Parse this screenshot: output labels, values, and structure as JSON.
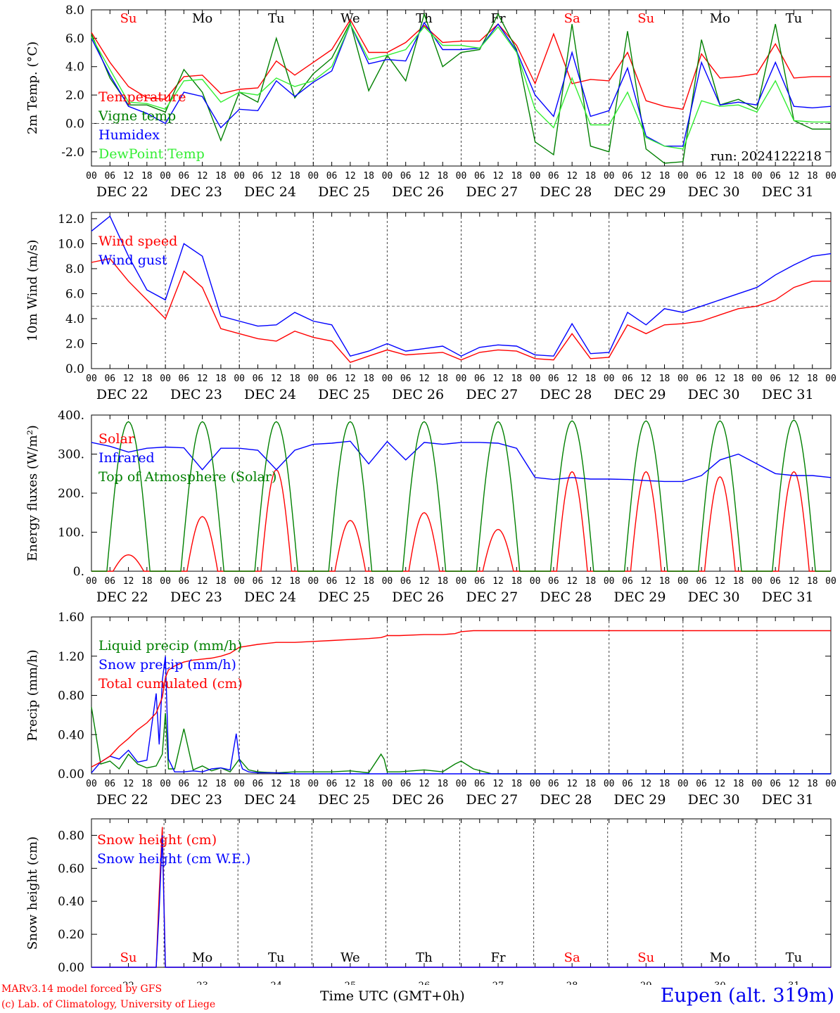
{
  "colors": {
    "red": "#ff0000",
    "green": "#008000",
    "blue": "#0000ff",
    "lightgreen": "#33ee33",
    "text": "#000000"
  },
  "x_ticks": [
    "00",
    "06",
    "12",
    "18",
    "00",
    "06",
    "12",
    "18",
    "00",
    "06",
    "12",
    "18",
    "00",
    "06",
    "12",
    "18",
    "00",
    "06",
    "12",
    "18",
    "00",
    "06",
    "12",
    "18",
    "00",
    "06",
    "12",
    "18",
    "00",
    "06",
    "12",
    "18",
    "00",
    "06",
    "12",
    "18",
    "00",
    "06",
    "12",
    "18",
    "00"
  ],
  "date_labels": [
    "DEC 22",
    "DEC 23",
    "DEC 24",
    "DEC 25",
    "DEC 26",
    "DEC 27",
    "DEC 28",
    "DEC 29",
    "DEC 30",
    "DEC 31"
  ],
  "weekdays": [
    {
      "label": "Su",
      "weekend": true
    },
    {
      "label": "Mo",
      "weekend": false
    },
    {
      "label": "Tu",
      "weekend": false
    },
    {
      "label": "We",
      "weekend": false
    },
    {
      "label": "Th",
      "weekend": false
    },
    {
      "label": "Fr",
      "weekend": false
    },
    {
      "label": "Sa",
      "weekend": true
    },
    {
      "label": "Su",
      "weekend": true
    },
    {
      "label": "Mo",
      "weekend": false
    },
    {
      "label": "Tu",
      "weekend": false
    }
  ],
  "day_numbers": [
    "22",
    "23",
    "24",
    "25",
    "26",
    "27",
    "28",
    "29",
    "30",
    "31"
  ],
  "run_label": "run: 2024122218",
  "footer": {
    "model": "MARv3.14 model forced by GFS",
    "credit": "(c) Lab. of Climatology, University of Liege",
    "time_axis": "Time UTC (GMT+0h)",
    "station": "Eupen (alt. 319m)"
  },
  "chart_data": [
    {
      "type": "line",
      "ylabel": "2m Temp. (°C)",
      "yticks": [
        "8.0",
        "6.0",
        "4.0",
        "2.0",
        "0.0",
        "-2.0"
      ],
      "ylim": [
        -3.0,
        8.0
      ],
      "x_unit": "hours since 2024-12-22 00 UTC",
      "xlim": [
        0,
        240
      ],
      "reference_line": 0.0,
      "series": [
        {
          "name": "Temperature",
          "color": "red",
          "x": [
            0,
            6,
            12,
            18,
            24,
            30,
            36,
            42,
            48,
            54,
            60,
            66,
            72,
            78,
            84,
            90,
            96,
            102,
            108,
            114,
            120,
            126,
            132,
            138,
            144,
            150,
            156,
            162,
            168,
            174,
            180,
            186,
            192,
            198,
            204,
            210,
            216,
            222,
            228,
            234,
            240
          ],
          "y": [
            6.4,
            4.3,
            2.6,
            1.8,
            1.7,
            3.3,
            3.4,
            2.1,
            2.4,
            2.5,
            4.4,
            3.4,
            4.3,
            5.2,
            7.3,
            5.0,
            5.0,
            5.7,
            6.9,
            5.7,
            5.8,
            5.8,
            7.0,
            5.5,
            2.8,
            6.3,
            2.8,
            3.1,
            3.0,
            5.0,
            1.6,
            1.2,
            1.0,
            4.9,
            3.2,
            3.3,
            3.5,
            5.6,
            3.2,
            3.3,
            3.3
          ]
        },
        {
          "name": "Vigne temp",
          "color": "green",
          "x": [
            0,
            6,
            12,
            18,
            24,
            30,
            36,
            42,
            48,
            54,
            60,
            66,
            72,
            78,
            84,
            90,
            96,
            102,
            108,
            114,
            120,
            126,
            132,
            138,
            144,
            150,
            156,
            162,
            168,
            174,
            180,
            186,
            192,
            198,
            204,
            210,
            216,
            222,
            228,
            234,
            240
          ],
          "y": [
            6.3,
            3.2,
            1.3,
            1.3,
            0.8,
            3.8,
            2.2,
            -1.2,
            2.2,
            1.5,
            6.0,
            1.8,
            3.5,
            4.6,
            7.1,
            2.3,
            4.8,
            3.0,
            7.7,
            4.0,
            5.0,
            5.2,
            7.7,
            5.2,
            -1.3,
            -2.2,
            7.0,
            -1.6,
            -2.0,
            6.5,
            -1.8,
            -2.8,
            -2.7,
            5.9,
            1.3,
            1.7,
            1.0,
            7.0,
            0.2,
            -0.4,
            -0.4
          ]
        },
        {
          "name": "Humidex",
          "color": "blue",
          "x": [
            0,
            6,
            12,
            18,
            24,
            30,
            36,
            42,
            48,
            54,
            60,
            66,
            72,
            78,
            84,
            90,
            96,
            102,
            108,
            114,
            120,
            126,
            132,
            138,
            144,
            150,
            156,
            162,
            168,
            174,
            180,
            186,
            192,
            198,
            204,
            210,
            216,
            222,
            228,
            234,
            240
          ],
          "y": [
            6.0,
            3.4,
            1.2,
            0.7,
            0.0,
            2.2,
            1.9,
            -0.3,
            1.0,
            0.9,
            3.0,
            1.9,
            2.9,
            3.7,
            7.0,
            4.2,
            4.5,
            4.4,
            7.1,
            5.2,
            5.2,
            5.3,
            7.0,
            5.1,
            2.0,
            0.5,
            5.0,
            0.5,
            0.9,
            3.9,
            -0.9,
            -1.6,
            -1.6,
            4.3,
            1.3,
            1.5,
            1.3,
            4.3,
            1.2,
            1.1,
            1.2
          ]
        },
        {
          "name": "DewPoint Temp",
          "color": "lightgreen",
          "x": [
            0,
            6,
            12,
            18,
            24,
            30,
            36,
            42,
            48,
            54,
            60,
            66,
            72,
            78,
            84,
            90,
            96,
            102,
            108,
            114,
            120,
            126,
            132,
            138,
            144,
            150,
            156,
            162,
            168,
            174,
            180,
            186,
            192,
            198,
            204,
            210,
            216,
            222,
            228,
            234,
            240
          ],
          "y": [
            6.1,
            3.8,
            1.5,
            1.4,
            1.0,
            3.0,
            3.1,
            1.5,
            2.2,
            2.0,
            3.2,
            2.6,
            3.0,
            4.0,
            7.0,
            4.5,
            4.8,
            5.2,
            6.8,
            5.5,
            5.5,
            5.3,
            6.8,
            5.0,
            1.0,
            -0.3,
            3.2,
            -0.1,
            -0.1,
            2.2,
            -1.0,
            -1.6,
            -1.8,
            1.6,
            1.2,
            1.3,
            0.8,
            3.0,
            0.2,
            0.1,
            0.1
          ]
        }
      ]
    },
    {
      "type": "line",
      "ylabel": "10m Wind (m/s)",
      "yticks": [
        "12.0",
        "10.0",
        "8.0",
        "6.0",
        "4.0",
        "2.0",
        "0.0"
      ],
      "ylim": [
        0,
        12.5
      ],
      "x_unit": "hours since 2024-12-22 00 UTC",
      "xlim": [
        0,
        240
      ],
      "reference_line": 5.0,
      "series": [
        {
          "name": "Wind speed",
          "color": "red",
          "x": [
            0,
            6,
            12,
            18,
            24,
            30,
            36,
            42,
            48,
            54,
            60,
            66,
            72,
            78,
            84,
            90,
            96,
            102,
            108,
            114,
            120,
            126,
            132,
            138,
            144,
            150,
            156,
            162,
            168,
            174,
            180,
            186,
            192,
            198,
            204,
            210,
            216,
            222,
            228,
            234,
            240
          ],
          "y": [
            8.5,
            8.8,
            7.0,
            5.5,
            4.0,
            7.8,
            6.5,
            3.2,
            2.8,
            2.4,
            2.2,
            3.0,
            2.5,
            2.2,
            0.5,
            1.0,
            1.5,
            1.1,
            1.2,
            1.3,
            0.7,
            1.3,
            1.5,
            1.4,
            0.8,
            0.7,
            2.8,
            0.8,
            0.9,
            3.5,
            2.8,
            3.5,
            3.6,
            3.8,
            4.3,
            4.8,
            5.0,
            5.5,
            6.5,
            7.0,
            7.0
          ]
        },
        {
          "name": "Wind gust",
          "color": "blue",
          "x": [
            0,
            6,
            12,
            18,
            24,
            30,
            36,
            42,
            48,
            54,
            60,
            66,
            72,
            78,
            84,
            90,
            96,
            102,
            108,
            114,
            120,
            126,
            132,
            138,
            144,
            150,
            156,
            162,
            168,
            174,
            180,
            186,
            192,
            198,
            204,
            210,
            216,
            222,
            228,
            234,
            240
          ],
          "y": [
            11.0,
            12.2,
            9.0,
            6.3,
            5.5,
            10.0,
            9.0,
            4.2,
            3.8,
            3.4,
            3.5,
            4.5,
            3.8,
            3.5,
            1.0,
            1.4,
            2.0,
            1.4,
            1.6,
            1.8,
            1.0,
            1.7,
            1.9,
            1.8,
            1.1,
            1.0,
            3.6,
            1.2,
            1.3,
            4.5,
            3.5,
            4.8,
            4.5,
            5.0,
            5.5,
            6.0,
            6.5,
            7.5,
            8.3,
            9.0,
            9.2
          ]
        }
      ]
    },
    {
      "type": "line",
      "ylabel": "Energy fluxes (W/m²)",
      "yticks": [
        "400.",
        "300.",
        "200.",
        "100.",
        "0."
      ],
      "ylim": [
        0,
        400
      ],
      "x_unit": "hours since 2024-12-22 00 UTC",
      "xlim": [
        0,
        240
      ],
      "series": [
        {
          "name": "Solar",
          "color": "red",
          "daily_peak_hour": 12,
          "daily_peaks": [
            42,
            140,
            260,
            130,
            150,
            107,
            255,
            255,
            242,
            255
          ],
          "half_width_hours": 5
        },
        {
          "name": "Infrared",
          "color": "blue",
          "x": [
            0,
            6,
            12,
            18,
            24,
            30,
            36,
            42,
            48,
            54,
            60,
            66,
            72,
            78,
            84,
            90,
            96,
            102,
            108,
            114,
            120,
            126,
            132,
            138,
            144,
            150,
            156,
            162,
            168,
            174,
            180,
            186,
            192,
            198,
            204,
            210,
            216,
            222,
            228,
            234,
            240
          ],
          "y": [
            330,
            320,
            305,
            315,
            318,
            316,
            260,
            315,
            315,
            310,
            260,
            310,
            325,
            328,
            333,
            275,
            332,
            285,
            330,
            325,
            330,
            330,
            328,
            315,
            240,
            235,
            240,
            236,
            236,
            235,
            232,
            230,
            230,
            245,
            285,
            300,
            275,
            250,
            245,
            245,
            240
          ]
        },
        {
          "name": "Top of Atmosphere (Solar)",
          "color": "green",
          "daily_peak_hour": 12,
          "daily_peaks": [
            383,
            383,
            383,
            383,
            383,
            383,
            385,
            385,
            385,
            387
          ],
          "half_width_hours": 7
        }
      ]
    },
    {
      "type": "line",
      "ylabel": "Precip (mm/h)",
      "yticks": [
        "1.60",
        "1.20",
        "0.80",
        "0.40",
        "0.00"
      ],
      "ylim": [
        0,
        1.6
      ],
      "x_unit": "hours since 2024-12-22 00 UTC",
      "xlim": [
        0,
        240
      ],
      "series": [
        {
          "name": "Liquid precip (mm/h)",
          "color": "green",
          "x": [
            0,
            3,
            6,
            9,
            12,
            15,
            18,
            21,
            23,
            24,
            25,
            27,
            30,
            33,
            36,
            39,
            42,
            45,
            48,
            51,
            54,
            60,
            66,
            72,
            78,
            84,
            90,
            94,
            95,
            96,
            100,
            108,
            114,
            118,
            120,
            124,
            130,
            132,
            138,
            144,
            192,
            240
          ],
          "y": [
            0.68,
            0.1,
            0.13,
            0.05,
            0.2,
            0.1,
            0.06,
            0.08,
            0.2,
            0.62,
            0.05,
            0.05,
            0.46,
            0.04,
            0.08,
            0.03,
            0.06,
            0.02,
            0.15,
            0.04,
            0.02,
            0.01,
            0.02,
            0.02,
            0.02,
            0.03,
            0.01,
            0.2,
            0.15,
            0.02,
            0.02,
            0.04,
            0.02,
            0.1,
            0.13,
            0.05,
            0.0,
            0.0,
            0.0,
            0.0,
            0.0,
            0.0
          ]
        },
        {
          "name": "Snow precip (mm/h)",
          "color": "blue",
          "x": [
            0,
            3,
            6,
            9,
            12,
            15,
            18,
            21,
            22,
            23,
            24,
            25,
            27,
            30,
            33,
            36,
            39,
            42,
            45,
            47,
            48,
            49,
            51,
            54,
            60,
            66,
            72,
            78,
            84,
            90,
            96,
            240
          ],
          "y": [
            0.01,
            0.12,
            0.18,
            0.15,
            0.24,
            0.12,
            0.14,
            0.82,
            0.3,
            0.95,
            1.2,
            0.15,
            0.02,
            0.02,
            0.03,
            0.02,
            0.05,
            0.06,
            0.04,
            0.41,
            0.15,
            0.05,
            0.02,
            0.01,
            0.01,
            0.0,
            0.0,
            0.0,
            0.0,
            0.0,
            0.0,
            0.0
          ]
        },
        {
          "name": "Total cumulated (cm)",
          "color": "red",
          "x": [
            0,
            3,
            6,
            9,
            12,
            15,
            18,
            21,
            23,
            24,
            25,
            27,
            30,
            33,
            36,
            39,
            42,
            45,
            48,
            54,
            60,
            66,
            72,
            78,
            84,
            90,
            94,
            95,
            96,
            100,
            108,
            114,
            118,
            120,
            124,
            128,
            132,
            144,
            192,
            240
          ],
          "y": [
            0.07,
            0.12,
            0.18,
            0.28,
            0.36,
            0.45,
            0.52,
            0.62,
            0.78,
            0.98,
            1.06,
            1.1,
            1.14,
            1.16,
            1.17,
            1.18,
            1.2,
            1.23,
            1.29,
            1.32,
            1.34,
            1.34,
            1.35,
            1.36,
            1.37,
            1.38,
            1.39,
            1.4,
            1.41,
            1.41,
            1.42,
            1.42,
            1.43,
            1.45,
            1.46,
            1.46,
            1.46,
            1.46,
            1.46,
            1.46
          ]
        }
      ]
    },
    {
      "type": "line",
      "ylabel": "Snow height (cm)",
      "yticks": [
        "0.80",
        "0.60",
        "0.40",
        "0.20",
        "0.00"
      ],
      "ylim": [
        0,
        0.9
      ],
      "x_unit": "hours since 2024-12-22 00 UTC",
      "xlim": [
        0,
        240
      ],
      "series": [
        {
          "name": "Snow height (cm)",
          "color": "red",
          "x": [
            0,
            21,
            22,
            23,
            24,
            240
          ],
          "y": [
            0.0,
            0.0,
            0.45,
            0.85,
            0.0,
            0.0
          ]
        },
        {
          "name": "Snow height (cm W.E.)",
          "color": "blue",
          "x": [
            0,
            21,
            22,
            23,
            24,
            240
          ],
          "y": [
            0.0,
            0.0,
            0.35,
            0.8,
            0.0,
            0.0
          ]
        }
      ]
    }
  ]
}
